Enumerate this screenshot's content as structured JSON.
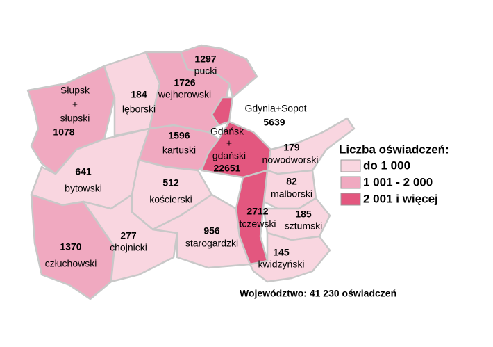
{
  "map": {
    "legend": {
      "title": "Liczba oświadczeń:",
      "items": [
        {
          "label": "do 1 000",
          "color": "#f9d6e0"
        },
        {
          "label": "1 001 - 2 000",
          "color": "#f0a9c0"
        },
        {
          "label": "2 001 i więcej",
          "color": "#e3577f"
        }
      ]
    },
    "regions": [
      {
        "lines": [
          "Słupsk",
          "+",
          "słupski"
        ],
        "value": 1078,
        "class": 1
      },
      {
        "lines": [
          "lęborski"
        ],
        "value": 184,
        "class": 0
      },
      {
        "lines": [
          "pucki"
        ],
        "value": 1297,
        "class": 1
      },
      {
        "lines": [
          "wejherowski"
        ],
        "value": 1726,
        "class": 1
      },
      {
        "lines": [
          "Gdynia+Sopot"
        ],
        "value": 5639,
        "class": 2
      },
      {
        "lines": [
          "bytowski"
        ],
        "value": 641,
        "class": 0
      },
      {
        "lines": [
          "kartuski"
        ],
        "value": 1596,
        "class": 1
      },
      {
        "lines": [
          "Gdańsk",
          "+",
          "gdański"
        ],
        "value": 22651,
        "class": 2
      },
      {
        "lines": [
          "nowodworski"
        ],
        "value": 179,
        "class": 0
      },
      {
        "lines": [
          "kościerski"
        ],
        "value": 512,
        "class": 0
      },
      {
        "lines": [
          "malborski"
        ],
        "value": 82,
        "class": 0
      },
      {
        "lines": [
          "tczewski"
        ],
        "value": 2712,
        "class": 2
      },
      {
        "lines": [
          "człuchowski"
        ],
        "value": 1370,
        "class": 1
      },
      {
        "lines": [
          "chojnicki"
        ],
        "value": 277,
        "class": 0
      },
      {
        "lines": [
          "starogardzki"
        ],
        "value": 956,
        "class": 0
      },
      {
        "lines": [
          "sztumski"
        ],
        "value": 185,
        "class": 0
      },
      {
        "lines": [
          "kwidzyński"
        ],
        "value": 145,
        "class": 0
      }
    ],
    "footer": "Województwo: 41 230 oświadczeń"
  }
}
